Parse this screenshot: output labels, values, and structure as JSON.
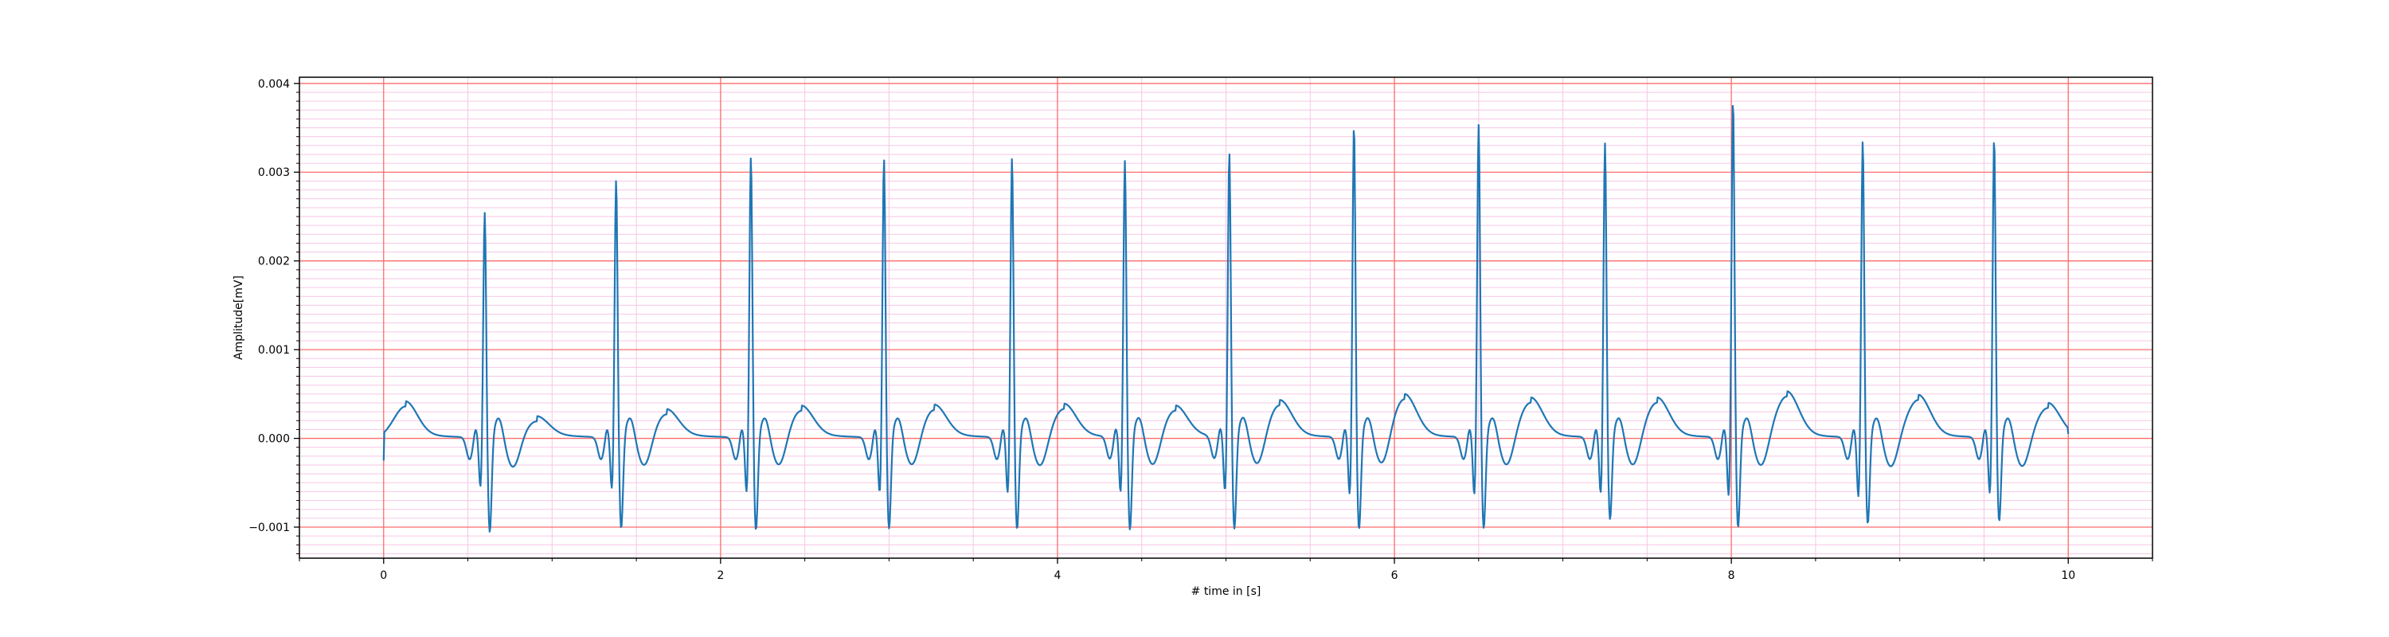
{
  "chart_data": {
    "type": "line",
    "title": "",
    "xlabel": "# time in [s]",
    "ylabel": "Amplitude[mV]",
    "xlim": [
      -0.5,
      10.5
    ],
    "ylim": [
      -0.00135,
      0.00407
    ],
    "x_ticks": [
      0,
      2,
      4,
      6,
      8,
      10
    ],
    "x_tick_labels": [
      "0",
      "2",
      "4",
      "6",
      "8",
      "10"
    ],
    "y_ticks": [
      -0.001,
      0.0,
      0.001,
      0.002,
      0.003,
      0.004
    ],
    "y_tick_labels": [
      "−0.001",
      "0.000",
      "0.001",
      "0.002",
      "0.003",
      "0.004"
    ],
    "grid": {
      "major": true,
      "minor": true,
      "major_color": "#ff6b6b",
      "minor_color": "#f7c6e6"
    },
    "series": [
      {
        "color": "#1f77b4",
        "start_value": -0.00025,
        "end_value": 5e-05,
        "beats": [
          {
            "r_time": 0.6,
            "r_peak": 0.00257,
            "q_value": -0.00058,
            "s_value": -0.00109,
            "t_peak": 0.00036,
            "t_time": 0.13
          },
          {
            "r_time": 1.38,
            "r_peak": 0.00294,
            "q_value": -0.0006,
            "s_value": -0.00105,
            "t_peak": 0.00019,
            "t_time": 0.91
          },
          {
            "r_time": 2.18,
            "r_peak": 0.0032,
            "q_value": -0.00064,
            "s_value": -0.00107,
            "t_peak": 0.00027,
            "t_time": 1.68
          },
          {
            "r_time": 2.97,
            "r_peak": 0.00318,
            "q_value": -0.00065,
            "s_value": -0.00105,
            "t_peak": 0.00031,
            "t_time": 2.48
          },
          {
            "r_time": 3.73,
            "r_peak": 0.00319,
            "q_value": -0.00065,
            "s_value": -0.00106,
            "t_peak": 0.00032,
            "t_time": 3.27
          },
          {
            "r_time": 4.4,
            "r_peak": 0.00315,
            "q_value": -0.00065,
            "s_value": -0.00107,
            "t_peak": 0.00033,
            "t_time": 4.04
          },
          {
            "r_time": 5.02,
            "r_peak": 0.00324,
            "q_value": -0.00064,
            "s_value": -0.00106,
            "t_peak": 0.00031,
            "t_time": 4.7
          },
          {
            "r_time": 5.76,
            "r_peak": 0.00356,
            "q_value": -0.00067,
            "s_value": -0.00106,
            "t_peak": 0.00037,
            "t_time": 5.32
          },
          {
            "r_time": 6.5,
            "r_peak": 0.00356,
            "q_value": -0.00068,
            "s_value": -0.00105,
            "t_peak": 0.00044,
            "t_time": 6.06
          },
          {
            "r_time": 7.25,
            "r_peak": 0.00335,
            "q_value": -0.00066,
            "s_value": -0.00095,
            "t_peak": 0.0004,
            "t_time": 6.81
          },
          {
            "r_time": 8.01,
            "r_peak": 0.00385,
            "q_value": -0.00069,
            "s_value": -0.00104,
            "t_peak": 0.0004,
            "t_time": 7.56
          },
          {
            "r_time": 8.78,
            "r_peak": 0.00338,
            "q_value": -0.0007,
            "s_value": -0.001,
            "t_peak": 0.00047,
            "t_time": 8.33
          },
          {
            "r_time": 9.56,
            "r_peak": 0.00342,
            "q_value": -0.00066,
            "s_value": -0.00097,
            "t_peak": 0.00043,
            "t_time": 9.11
          },
          {
            "r_time": null,
            "r_peak": null,
            "q_value": null,
            "s_value": null,
            "t_peak": 0.00034,
            "t_time": 9.88
          }
        ]
      }
    ]
  }
}
